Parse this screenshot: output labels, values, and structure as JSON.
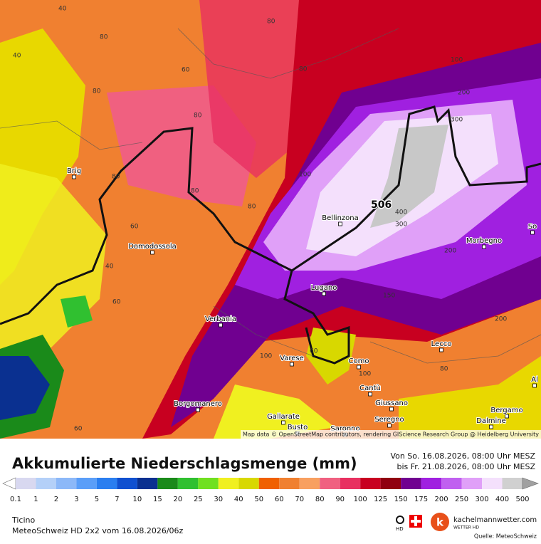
{
  "map": {
    "attribution": "Map data © OpenStreetMap contributors, rendering GIScience Research Group @ Heidelberg University",
    "max_label": "506",
    "places": [
      "Brig",
      "Domodossola",
      "Bellinzona",
      "Morbegno",
      "Lugano",
      "Verbania",
      "Varese",
      "Como",
      "Lecco",
      "Cantù",
      "Giussano",
      "Seregno",
      "Gallarate",
      "Busto",
      "Saronno",
      "Borgomanero",
      "Bergamo",
      "Dalmine",
      "So",
      "Al"
    ],
    "contour_labels": [
      "40",
      "80",
      "60",
      "80",
      "40",
      "80",
      "80",
      "80",
      "80",
      "60",
      "40",
      "80",
      "60",
      "100",
      "80",
      "100",
      "200",
      "300",
      "400",
      "300",
      "200",
      "200",
      "100",
      "150",
      "80",
      "60",
      "60",
      "100"
    ]
  },
  "legend": {
    "title": "Akkumulierte Niederschlagsmenge (mm)",
    "period_from": "Von So. 16.08.2026, 08:00 Uhr MESZ",
    "period_to": "bis Fr. 21.08.2026, 08:00 Uhr MESZ",
    "labels": [
      "0.1",
      "1",
      "2",
      "3",
      "5",
      "7",
      "10",
      "15",
      "20",
      "25",
      "30",
      "40",
      "50",
      "60",
      "70",
      "80",
      "90",
      "100",
      "125",
      "150",
      "175",
      "200",
      "250",
      "300",
      "400",
      "500"
    ],
    "colors": [
      "#ffffff",
      "#d8d8f0",
      "#b4d0f8",
      "#8cb8f8",
      "#5a9ef8",
      "#2a7ef0",
      "#1050d0",
      "#0a3090",
      "#1a8a1a",
      "#30c030",
      "#70e020",
      "#f0f020",
      "#d8d800",
      "#f06000",
      "#f08030",
      "#f8a060",
      "#f06080",
      "#e83060",
      "#c80020",
      "#900010",
      "#700090",
      "#a020e0",
      "#c060f0",
      "#e0a0f8",
      "#f4e0fc",
      "#d0d0d0",
      "#a0a0a0"
    ]
  },
  "footer": {
    "region": "Ticino",
    "model": "MeteoSchweiz HD 2x2 vom  16.08.2026/06z",
    "hd": "HD",
    "brand": "kachelmannwetter.com",
    "brand_sub": "WETTER HD",
    "source": "Quelle: MeteoSchweiz"
  }
}
